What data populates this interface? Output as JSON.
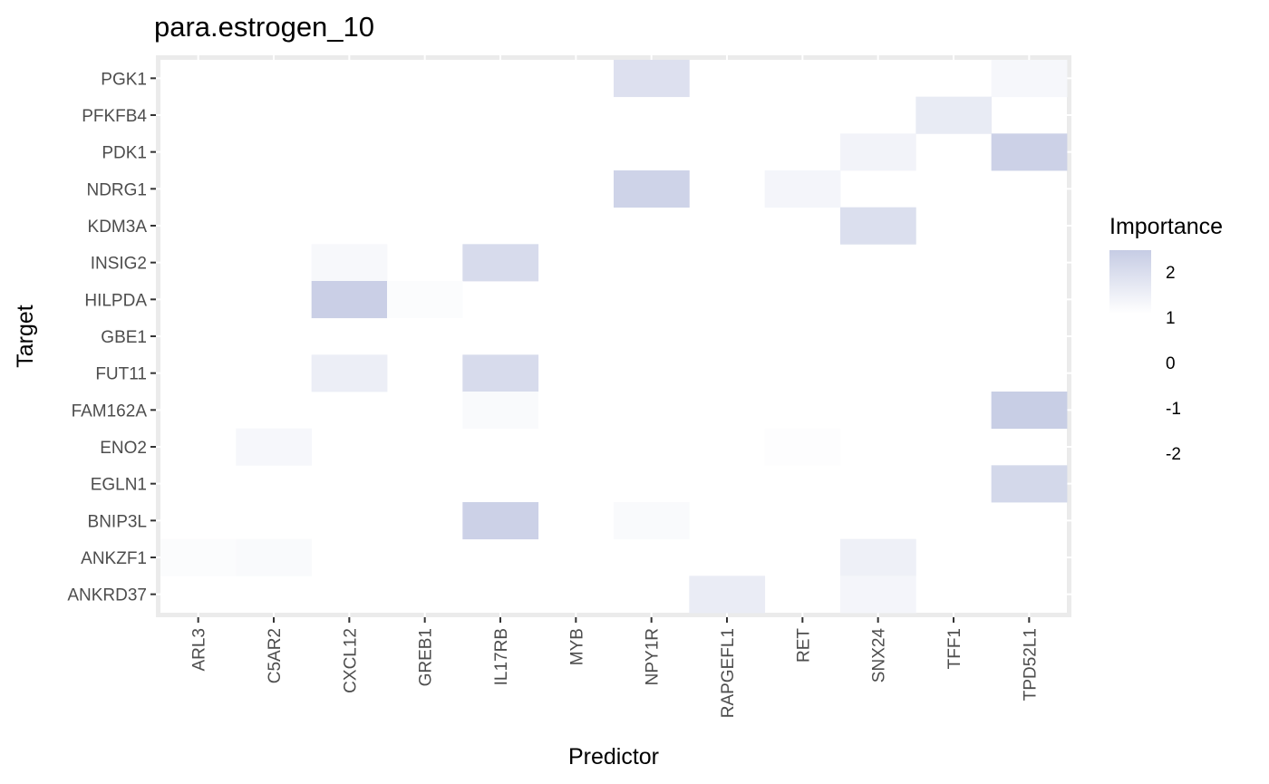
{
  "chart_data": {
    "type": "heatmap",
    "title": "para.estrogen_10",
    "xlabel": "Predictor",
    "ylabel": "Target",
    "x_categories": [
      "ARL3",
      "C5AR2",
      "CXCL12",
      "GREB1",
      "IL17RB",
      "MYB",
      "NPY1R",
      "RAPGEFL1",
      "RET",
      "SNX24",
      "TFF1",
      "TPD52L1"
    ],
    "y_categories": [
      "ANKRD37",
      "ANKZF1",
      "BNIP3L",
      "EGLN1",
      "ENO2",
      "FAM162A",
      "FUT11",
      "GBE1",
      "HILPDA",
      "INSIG2",
      "KDM3A",
      "NDRG1",
      "PDK1",
      "PFKFB4",
      "PGK1"
    ],
    "cells": [
      {
        "y": "PGK1",
        "x": "NPY1R",
        "value": 1.9
      },
      {
        "y": "PGK1",
        "x": "TPD52L1",
        "value": 1.25
      },
      {
        "y": "PFKFB4",
        "x": "TFF1",
        "value": 1.6
      },
      {
        "y": "PDK1",
        "x": "SNX24",
        "value": 1.35
      },
      {
        "y": "PDK1",
        "x": "TPD52L1",
        "value": 2.35
      },
      {
        "y": "NDRG1",
        "x": "NPY1R",
        "value": 2.3
      },
      {
        "y": "NDRG1",
        "x": "RET",
        "value": 1.3
      },
      {
        "y": "KDM3A",
        "x": "SNX24",
        "value": 1.95
      },
      {
        "y": "INSIG2",
        "x": "CXCL12",
        "value": 1.2
      },
      {
        "y": "INSIG2",
        "x": "IL17RB",
        "value": 2.05
      },
      {
        "y": "HILPDA",
        "x": "CXCL12",
        "value": 2.4
      },
      {
        "y": "HILPDA",
        "x": "GREB1",
        "value": 1.1
      },
      {
        "y": "FUT11",
        "x": "CXCL12",
        "value": 1.5
      },
      {
        "y": "FUT11",
        "x": "IL17RB",
        "value": 2.05
      },
      {
        "y": "FAM162A",
        "x": "IL17RB",
        "value": 1.15
      },
      {
        "y": "FAM162A",
        "x": "TPD52L1",
        "value": 2.45
      },
      {
        "y": "ENO2",
        "x": "C5AR2",
        "value": 1.25
      },
      {
        "y": "ENO2",
        "x": "RET",
        "value": 1.05
      },
      {
        "y": "EGLN1",
        "x": "TPD52L1",
        "value": 2.15
      },
      {
        "y": "BNIP3L",
        "x": "IL17RB",
        "value": 2.35
      },
      {
        "y": "BNIP3L",
        "x": "NPY1R",
        "value": 1.15
      },
      {
        "y": "ANKZF1",
        "x": "ARL3",
        "value": 1.1
      },
      {
        "y": "ANKZF1",
        "x": "C5AR2",
        "value": 1.15
      },
      {
        "y": "ANKZF1",
        "x": "SNX24",
        "value": 1.45
      },
      {
        "y": "ANKRD37",
        "x": "RAPGEFL1",
        "value": 1.55
      },
      {
        "y": "ANKRD37",
        "x": "SNX24",
        "value": 1.3
      }
    ],
    "legend": {
      "title": "Importance",
      "placement": "right",
      "ticks": [
        2,
        1,
        0,
        -1,
        -2
      ],
      "gradient_range": [
        1,
        2.5
      ],
      "low_color": "#ffffff",
      "high_color": "#c6cce4"
    },
    "panel_background": "#ebebeb",
    "cell_background": "#ffffff",
    "grid": true
  }
}
